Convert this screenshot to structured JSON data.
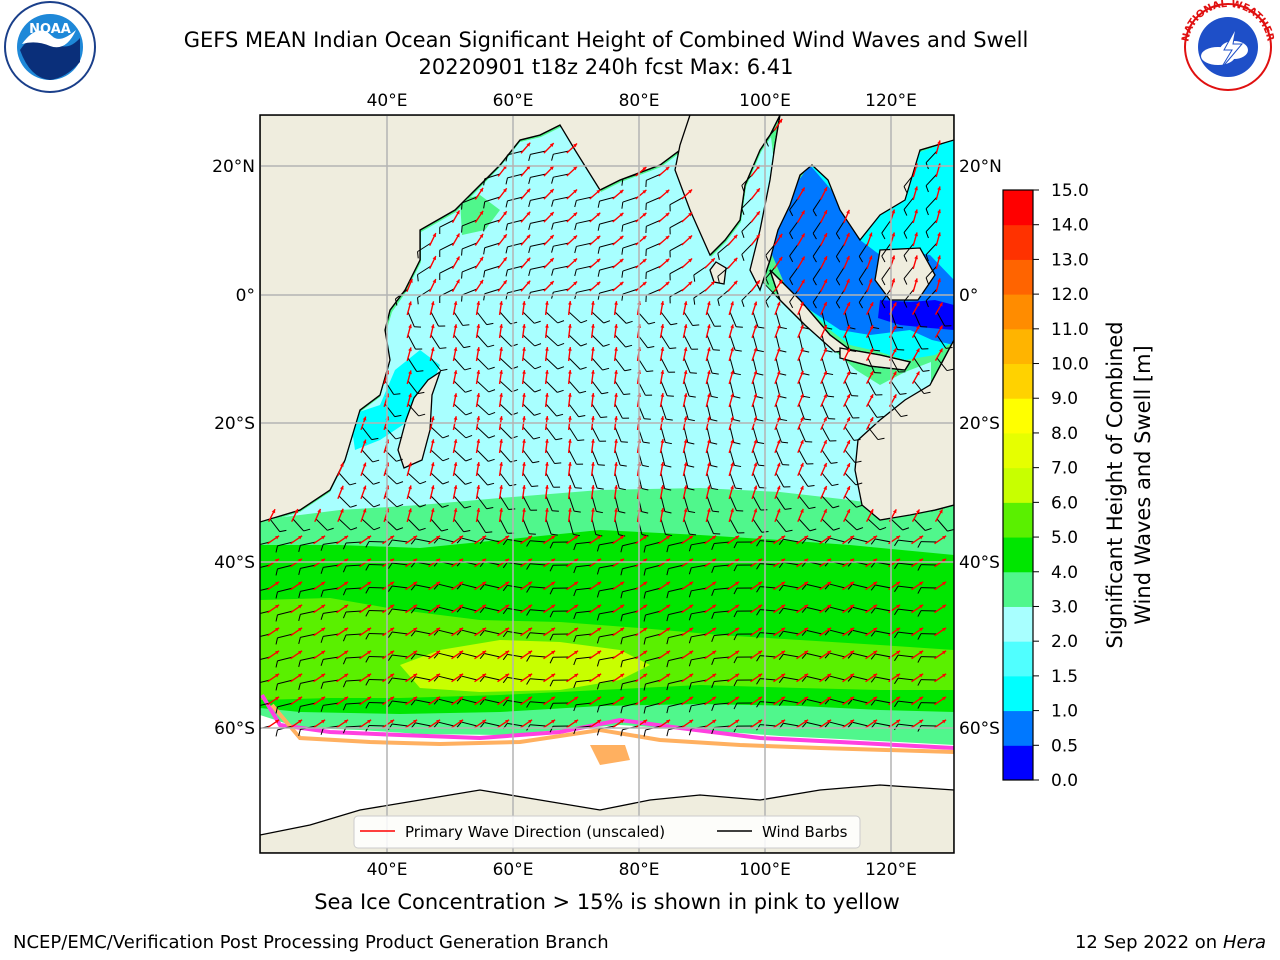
{
  "header": {
    "title_line1": "GEFS MEAN Indian Ocean Significant Height of Combined Wind Waves and Swell",
    "title_line2": "20220901 t18z 240h fcst   Max: 6.41"
  },
  "logos": {
    "noaa_text": "NOAA",
    "nws_ring_text": "NATIONAL WEATHER SERVICE"
  },
  "map": {
    "lon_labels": [
      "40°E",
      "60°E",
      "80°E",
      "100°E",
      "120°E"
    ],
    "lat_labels_left": [
      "20°N",
      "0°",
      "20°S",
      "40°S",
      "60°S"
    ],
    "lat_labels_right": [
      "20°N",
      "0°",
      "20°S",
      "40°S",
      "60°S"
    ],
    "colors": {
      "land": "#efedde",
      "ice": "#ffffff",
      "grid": "#b4b4b4"
    }
  },
  "legend": {
    "wave_label": "Primary Wave Direction (unscaled)",
    "barb_label": "Wind Barbs",
    "wave_color": "#ff0000",
    "barb_color": "#000000"
  },
  "colorbar": {
    "label_line1": "Significant Height of Combined",
    "label_line2": "Wind Waves and Swell [m]",
    "ticks": [
      "0.0",
      "0.5",
      "1.0",
      "1.5",
      "2.0",
      "3.0",
      "4.0",
      "5.0",
      "6.0",
      "7.0",
      "8.0",
      "9.0",
      "10.0",
      "11.0",
      "12.0",
      "13.0",
      "14.0",
      "15.0"
    ],
    "colors": [
      "#0000ff",
      "#0078ff",
      "#00ffff",
      "#50ffff",
      "#a8ffff",
      "#50f78c",
      "#00e600",
      "#5af000",
      "#c8ff00",
      "#e6ff00",
      "#ffff00",
      "#ffd200",
      "#ffb400",
      "#ff8c00",
      "#ff6400",
      "#ff3200",
      "#ff0000"
    ]
  },
  "footer": {
    "ice_note": "Sea Ice Concentration > 15% is shown in pink to yellow",
    "credit": "NCEP/EMC/Verification Post Processing Product Generation Branch",
    "date": "12 Sep 2022 on",
    "host": "Hera"
  }
}
